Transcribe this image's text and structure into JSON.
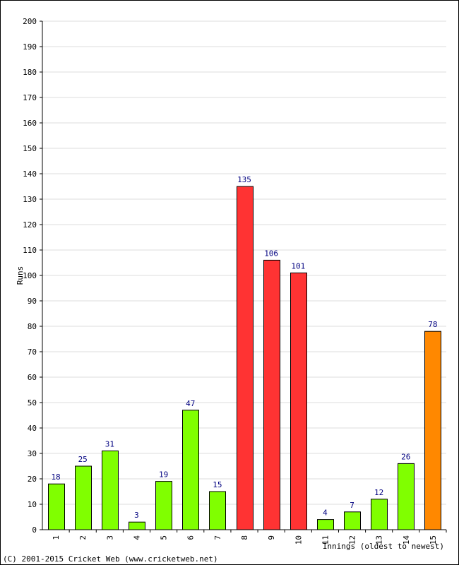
{
  "chart_data": {
    "type": "bar",
    "title": "",
    "xlabel": "Innings (oldest to newest)",
    "ylabel": "Runs",
    "ylim": [
      0,
      200
    ],
    "ytick_step": 10,
    "grid": true,
    "categories": [
      "1",
      "2",
      "3",
      "4",
      "5",
      "6",
      "7",
      "8",
      "9",
      "10",
      "11",
      "12",
      "13",
      "14",
      "15"
    ],
    "values": [
      18,
      25,
      31,
      3,
      19,
      47,
      15,
      135,
      106,
      101,
      4,
      7,
      12,
      26,
      78
    ],
    "bar_colors": [
      "#80ff00",
      "#80ff00",
      "#80ff00",
      "#80ff00",
      "#80ff00",
      "#80ff00",
      "#80ff00",
      "#ff3333",
      "#ff3333",
      "#ff3333",
      "#80ff00",
      "#80ff00",
      "#80ff00",
      "#80ff00",
      "#ff8800"
    ],
    "label_color": "#000080"
  },
  "footer": {
    "copyright": "(C) 2001-2015 Cricket Web (www.cricketweb.net)"
  }
}
